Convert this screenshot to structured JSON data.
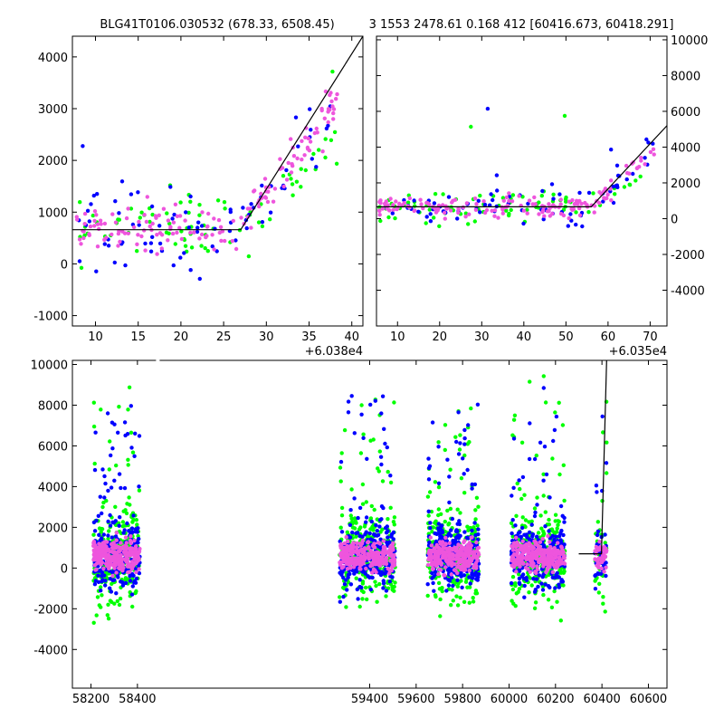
{
  "titles": {
    "left": "BLG41T0106.030532 (678.33, 6508.45)",
    "right": "3 1553 2478.61 0.168 412 [60416.673, 60418.291]"
  },
  "colors": {
    "series_a": "#0000ff",
    "series_b": "#00ff00",
    "series_c": "#ee55dd",
    "model": "#000000"
  },
  "chart_data": [
    {
      "id": "panel_top_left",
      "type": "scatter",
      "x_offset_label": "+6.038e4",
      "xlim": [
        7.3,
        41.3
      ],
      "ylim": [
        -1200,
        4400
      ],
      "xticks": [
        10,
        15,
        20,
        25,
        30,
        35,
        40
      ],
      "yticks": [
        -1000,
        0,
        1000,
        2000,
        3000,
        4000
      ],
      "yaxis_side": "left",
      "model_line": {
        "x": [
          7.3,
          27,
          41.3
        ],
        "y": [
          660,
          660,
          4400
        ]
      }
    },
    {
      "id": "panel_top_right",
      "type": "scatter",
      "x_offset_label": "+6.035e4",
      "xlim": [
        5,
        74
      ],
      "ylim": [
        -6000,
        10200
      ],
      "xticks": [
        10,
        20,
        30,
        40,
        50,
        60,
        70
      ],
      "yticks": [
        -4000,
        -2000,
        0,
        2000,
        4000,
        6000,
        8000,
        10000
      ],
      "yaxis_side": "right",
      "model_line": {
        "x": [
          5,
          56,
          74
        ],
        "y": [
          660,
          660,
          5200
        ]
      }
    },
    {
      "id": "panel_bottom",
      "type": "scatter",
      "xlim": [
        58120,
        60680
      ],
      "ylim": [
        -5900,
        10200
      ],
      "xticks": [
        58200,
        58400,
        59400,
        59600,
        59800,
        60000,
        60200,
        60400,
        60600
      ],
      "yticks": [
        -4000,
        -2000,
        0,
        2000,
        4000,
        6000,
        8000,
        10000
      ],
      "yaxis_side": "left",
      "model_line": {
        "x": [
          60300,
          60398,
          60420
        ],
        "y": [
          700,
          700,
          10200
        ]
      },
      "seasons": [
        [
          58210,
          58410
        ],
        [
          59270,
          59510
        ],
        [
          59650,
          59870
        ],
        [
          60010,
          60240
        ],
        [
          60370,
          60420
        ]
      ]
    }
  ]
}
